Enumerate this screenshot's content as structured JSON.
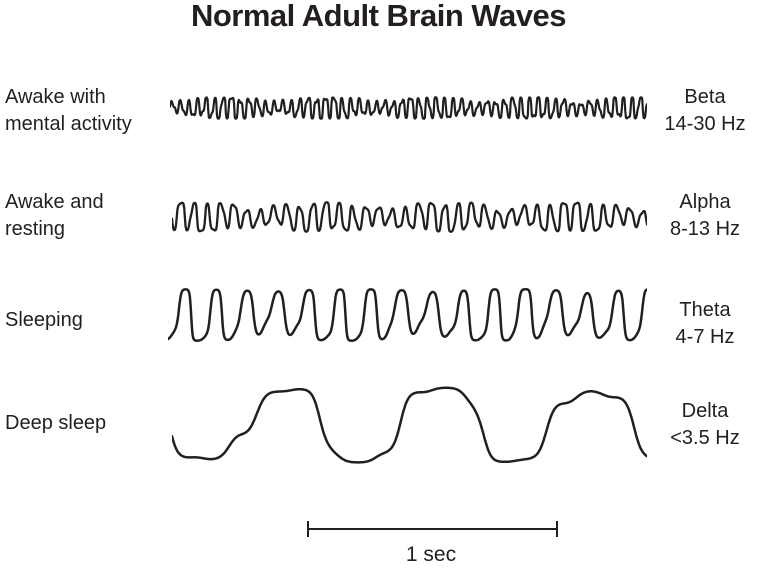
{
  "title": "Normal Adult Brain Waves",
  "colors": {
    "ink": "#231f20",
    "background": "#ffffff"
  },
  "rows": [
    {
      "state_label": "Awake with\nmental activity",
      "band": "Beta",
      "frequency": "14-30 Hz",
      "wave": {
        "seed": 7,
        "cycles": 56,
        "amplitude": 9,
        "harmonics": [
          [
            1.9,
            0.45
          ],
          [
            0.33,
            0.22
          ]
        ],
        "mod": 0.5,
        "modCycles": 4.7,
        "clip": 1.2,
        "stroke": 2.2
      }
    },
    {
      "state_label": "Awake and\nresting",
      "band": "Alpha",
      "frequency": "8-13 Hz",
      "wave": {
        "seed": 13,
        "cycles": 36,
        "amplitude": 12,
        "harmonics": [
          [
            2.2,
            0.25
          ],
          [
            0.27,
            0.3
          ]
        ],
        "mod": 0.45,
        "modCycles": 3.8,
        "clip": 1.1,
        "stroke": 2.3
      }
    },
    {
      "state_label": "Sleeping",
      "band": "Theta",
      "frequency": "4-7 Hz",
      "wave": {
        "seed": 3,
        "cycles": 15.5,
        "amplitude": 24,
        "harmonics": [
          [
            2.0,
            0.3
          ],
          [
            0.23,
            0.18
          ]
        ],
        "mod": 0.35,
        "modCycles": 3.1,
        "clip": 1.6,
        "stroke": 2.5
      }
    },
    {
      "state_label": "Deep sleep",
      "band": "Delta",
      "frequency": "<3.5 Hz",
      "wave": {
        "seed": 11,
        "cycles": 3.1,
        "amplitude": 36,
        "harmonics": [
          [
            4.3,
            0.12
          ],
          [
            1.9,
            0.15
          ]
        ],
        "mod": 0.2,
        "modCycles": 1.3,
        "clip": 1.8,
        "stroke": 2.5
      }
    }
  ],
  "scale_bar": {
    "label": "1 sec"
  }
}
